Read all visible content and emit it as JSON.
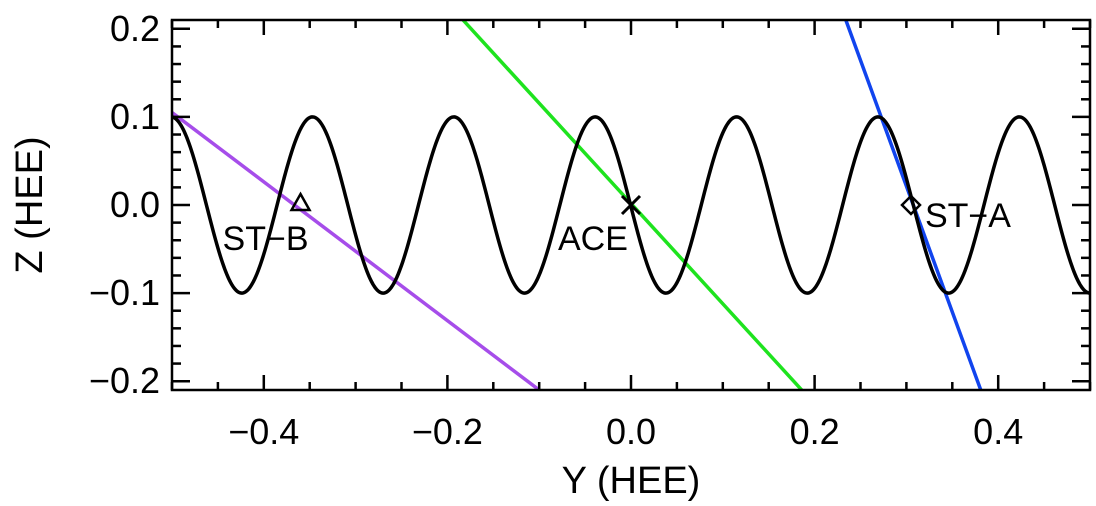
{
  "chart_data": {
    "type": "line",
    "title": "",
    "xlabel": "Y (HEE)",
    "ylabel": "Z (HEE)",
    "xlim": [
      -0.5,
      0.5
    ],
    "ylim": [
      -0.21,
      0.21
    ],
    "x_ticks": [
      -0.4,
      -0.2,
      0.0,
      0.2,
      0.4
    ],
    "x_tick_labels": [
      "−0.4",
      "−0.2",
      "0.0",
      "0.2",
      "0.4"
    ],
    "y_ticks": [
      -0.2,
      -0.1,
      0.0,
      0.1,
      0.2
    ],
    "y_tick_labels": [
      "−0.2",
      "−0.1",
      "0.0",
      "0.1",
      "0.2"
    ],
    "wave": {
      "color": "#000000",
      "amplitude": 0.1,
      "period": 0.154,
      "peak_x": -0.039
    },
    "lines": [
      {
        "color": "#a64dea",
        "points": [
          [
            -0.5,
            0.105
          ],
          [
            -0.1,
            -0.21
          ]
        ]
      },
      {
        "color": "#1ee31e",
        "points": [
          [
            -0.183,
            0.21
          ],
          [
            0.186,
            -0.21
          ]
        ]
      },
      {
        "color": "#1144ee",
        "points": [
          [
            0.234,
            0.21
          ],
          [
            0.381,
            -0.21
          ]
        ]
      }
    ],
    "markers": [
      {
        "label": "ST−B",
        "x": -0.36,
        "y": 0.0,
        "symbol": "triangle"
      },
      {
        "label": "ACE",
        "x": 0.0,
        "y": 0.0,
        "symbol": "x"
      },
      {
        "label": "ST−A",
        "x": 0.305,
        "y": 0.0,
        "symbol": "diamond"
      }
    ],
    "grid": false,
    "legend": "none"
  }
}
